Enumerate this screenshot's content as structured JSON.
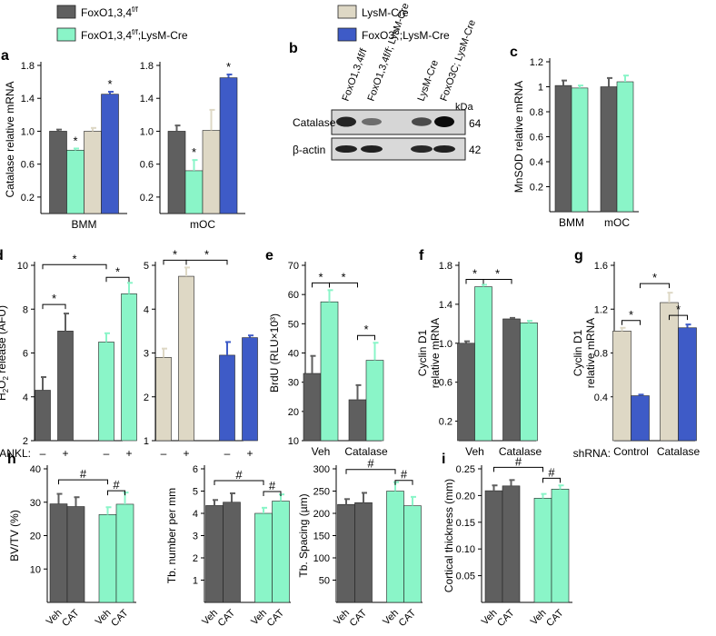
{
  "colors": {
    "dark": "#5f5f5f",
    "mint": "#8af5c8",
    "beige": "#ded8c5",
    "blue": "#3e5bc7"
  },
  "legend": [
    {
      "label": "FoxO1,3,4",
      "sup": "f/f",
      "tail": "",
      "color": "dark"
    },
    {
      "label": "FoxO1,3,4",
      "sup": "f/f",
      "tail": ";LysM-Cre",
      "color": "mint"
    },
    {
      "label": "LysM-Cre",
      "sup": "",
      "tail": "",
      "color": "beige"
    },
    {
      "label": "FoxO3",
      "sup": "C",
      "tail": ";LysM-Cre",
      "color": "blue"
    }
  ],
  "blot": {
    "letter": "b",
    "lanes": [
      "FoxO1,3,4f/f",
      "FoxO1,3,4f/f; LysM-Cre",
      "LysM-Cre",
      "FoxO3C; LysM-Cre"
    ],
    "rows": [
      "Catalase",
      "β-actin"
    ],
    "kda_label": "kDa",
    "kda": [
      "64",
      "42"
    ],
    "catalase_intensity": [
      0.85,
      0.35,
      0.6,
      1.0
    ],
    "actin_intensity": [
      0.85,
      0.85,
      0.8,
      0.85
    ]
  },
  "chart_data": [
    {
      "id": "a1",
      "letter": "a",
      "type": "bar",
      "ylabel": "Catalase relative mRNA",
      "ylim": [
        0,
        1.8
      ],
      "ticks": [
        "0.2",
        "0.6",
        "1.0",
        "1.4",
        "1.8"
      ],
      "groups": [
        {
          "label": "BMM",
          "values": [
            1.0,
            0.77,
            1.0,
            1.45
          ],
          "errors": [
            0.02,
            0.02,
            0.04,
            0.03
          ]
        }
      ],
      "colors": [
        "dark",
        "mint",
        "beige",
        "blue"
      ],
      "stars": [
        "*",
        "*"
      ]
    },
    {
      "id": "a2",
      "type": "bar",
      "ylim": [
        0,
        1.8
      ],
      "ticks": [
        "0.2",
        "0.6",
        "1.0",
        "1.4",
        "1.8"
      ],
      "groups": [
        {
          "label": "mOC",
          "values": [
            1.0,
            0.52,
            1.01,
            1.65
          ],
          "errors": [
            0.07,
            0.13,
            0.25,
            0.04
          ]
        }
      ],
      "colors": [
        "dark",
        "mint",
        "beige",
        "blue"
      ],
      "stars": [
        "*",
        "*"
      ]
    },
    {
      "id": "c",
      "letter": "c",
      "type": "bar",
      "ylabel": "MnSOD relative mRNA",
      "ylim": [
        0,
        1.2
      ],
      "ticks": [
        "0.2",
        "0.4",
        "0.6",
        "0.8",
        "1",
        "1.2"
      ],
      "groups": [
        {
          "label": "BMM",
          "values": [
            1.01,
            0.99
          ],
          "errors": [
            0.04,
            0.02
          ]
        },
        {
          "label": "mOC",
          "values": [
            1.0,
            1.04
          ],
          "errors": [
            0.07,
            0.05
          ]
        }
      ],
      "colors": [
        "dark",
        "mint"
      ],
      "stars": []
    },
    {
      "id": "d1",
      "letter": "d",
      "type": "bar",
      "ylabel": "H2O2 release (AFU)",
      "ylim": [
        2,
        10
      ],
      "ticks": [
        "2",
        "4",
        "6",
        "8",
        "10"
      ],
      "groups": [
        {
          "label": "",
          "values": [
            4.3,
            7.0,
            6.5,
            8.7
          ],
          "errors": [
            0.6,
            0.8,
            0.4,
            0.5
          ]
        }
      ],
      "colors": [
        "dark",
        "dark",
        "mint",
        "mint"
      ],
      "xticklabels": [
        "–",
        "+",
        "–",
        "+"
      ],
      "rowlabel": "RANKL:",
      "stars": [
        "*",
        "*",
        "*"
      ]
    },
    {
      "id": "d2",
      "type": "bar",
      "ylim": [
        1,
        5
      ],
      "ticks": [
        "1",
        "2",
        "3",
        "4",
        "5"
      ],
      "groups": [
        {
          "label": "",
          "values": [
            2.9,
            4.75,
            2.95,
            3.35
          ],
          "errors": [
            0.2,
            0.2,
            0.3,
            0.05
          ]
        }
      ],
      "colors": [
        "beige",
        "beige",
        "blue",
        "blue"
      ],
      "xticklabels": [
        "–",
        "+",
        "–",
        "+"
      ],
      "stars": [
        "*",
        "*"
      ]
    },
    {
      "id": "e",
      "letter": "e",
      "type": "bar",
      "ylabel": "BrdU (RLU×10³)",
      "ylim": [
        10,
        70
      ],
      "ticks": [
        "10",
        "20",
        "30",
        "40",
        "50",
        "60",
        "70"
      ],
      "groups": [
        {
          "label": "Veh",
          "values": [
            33,
            57.5
          ],
          "errors": [
            6,
            4
          ]
        },
        {
          "label": "Catalase",
          "values": [
            24,
            37.5
          ],
          "errors": [
            5,
            6
          ]
        }
      ],
      "colors": [
        "dark",
        "mint"
      ],
      "stars": [
        "*",
        "*",
        "*"
      ]
    },
    {
      "id": "f",
      "letter": "f",
      "type": "bar",
      "ylabel": "Cyclin D1 relative mRNA",
      "ylim": [
        0,
        1.8
      ],
      "ticks": [
        "0.2",
        "0.6",
        "1.0",
        "1.4",
        "1.8"
      ],
      "groups": [
        {
          "label": "Veh",
          "values": [
            1.0,
            1.58
          ],
          "errors": [
            0.02,
            0.02
          ]
        },
        {
          "label": "Catalase",
          "values": [
            1.25,
            1.21
          ],
          "errors": [
            0.01,
            0.02
          ]
        }
      ],
      "colors": [
        "dark",
        "mint"
      ],
      "stars": [
        "*",
        "*"
      ]
    },
    {
      "id": "g",
      "letter": "g",
      "type": "bar",
      "ylabel": "Cyclin D1 relative mRNA",
      "ylim": [
        0,
        1.6
      ],
      "ticks": [
        "0.4",
        "0.8",
        "1.2",
        "1.6"
      ],
      "groups": [
        {
          "label": "Control",
          "values": [
            1.0,
            0.41
          ],
          "errors": [
            0.03,
            0.01
          ]
        },
        {
          "label": "Catalase",
          "values": [
            1.26,
            1.03
          ],
          "errors": [
            0.09,
            0.03
          ]
        }
      ],
      "colors": [
        "beige",
        "blue"
      ],
      "rowlabel": "shRNA:",
      "stars": [
        "*",
        "*",
        "*"
      ]
    },
    {
      "id": "h1",
      "letter": "h",
      "type": "bar",
      "ylabel": "BV/TV (%)",
      "ylim": [
        0,
        40
      ],
      "ticks": [
        "10",
        "20",
        "30",
        "40"
      ],
      "groups": [
        {
          "label": "",
          "values": [
            29.5,
            28.7,
            26.3,
            29.4
          ],
          "errors": [
            3.0,
            2.8,
            2.2,
            3.5
          ]
        }
      ],
      "colors": [
        "dark",
        "dark",
        "mint",
        "mint"
      ],
      "xticklabels": [
        "Veh",
        "CAT",
        "Veh",
        "CAT"
      ],
      "stars": [
        "#",
        "#"
      ]
    },
    {
      "id": "h2",
      "type": "bar",
      "ylabel": "Tb. number per mm",
      "ylim": [
        0,
        6
      ],
      "ticks": [
        "1",
        "2",
        "3",
        "4",
        "5",
        "6"
      ],
      "groups": [
        {
          "label": "",
          "values": [
            4.35,
            4.5,
            4.0,
            4.55
          ],
          "errors": [
            0.25,
            0.4,
            0.25,
            0.3
          ]
        }
      ],
      "colors": [
        "dark",
        "dark",
        "mint",
        "mint"
      ],
      "xticklabels": [
        "Veh",
        "CAT",
        "Veh",
        "CAT"
      ],
      "stars": [
        "#",
        "#"
      ]
    },
    {
      "id": "h3",
      "type": "bar",
      "ylabel": "Tb. Spacing (µm)",
      "ylim": [
        0,
        300
      ],
      "ticks": [
        "50",
        "100",
        "150",
        "200",
        "250",
        "300"
      ],
      "groups": [
        {
          "label": "",
          "values": [
            220,
            224,
            250,
            217
          ],
          "errors": [
            12,
            22,
            20,
            20
          ]
        }
      ],
      "colors": [
        "dark",
        "dark",
        "mint",
        "mint"
      ],
      "xticklabels": [
        "Veh",
        "CAT",
        "Veh",
        "CAT"
      ],
      "stars": [
        "#",
        "#"
      ]
    },
    {
      "id": "i",
      "letter": "i",
      "type": "bar",
      "ylabel": "Cortical thickness (mm)",
      "ylim": [
        0,
        0.25
      ],
      "ticks": [
        "0.05",
        "0.10",
        "0.15",
        "0.20",
        "0.25"
      ],
      "groups": [
        {
          "label": "",
          "values": [
            0.209,
            0.218,
            0.195,
            0.212
          ],
          "errors": [
            0.01,
            0.011,
            0.008,
            0.007
          ]
        }
      ],
      "colors": [
        "dark",
        "dark",
        "mint",
        "mint"
      ],
      "xticklabels": [
        "Veh",
        "CAT",
        "Veh",
        "CAT"
      ],
      "stars": [
        "#",
        "#"
      ]
    }
  ]
}
